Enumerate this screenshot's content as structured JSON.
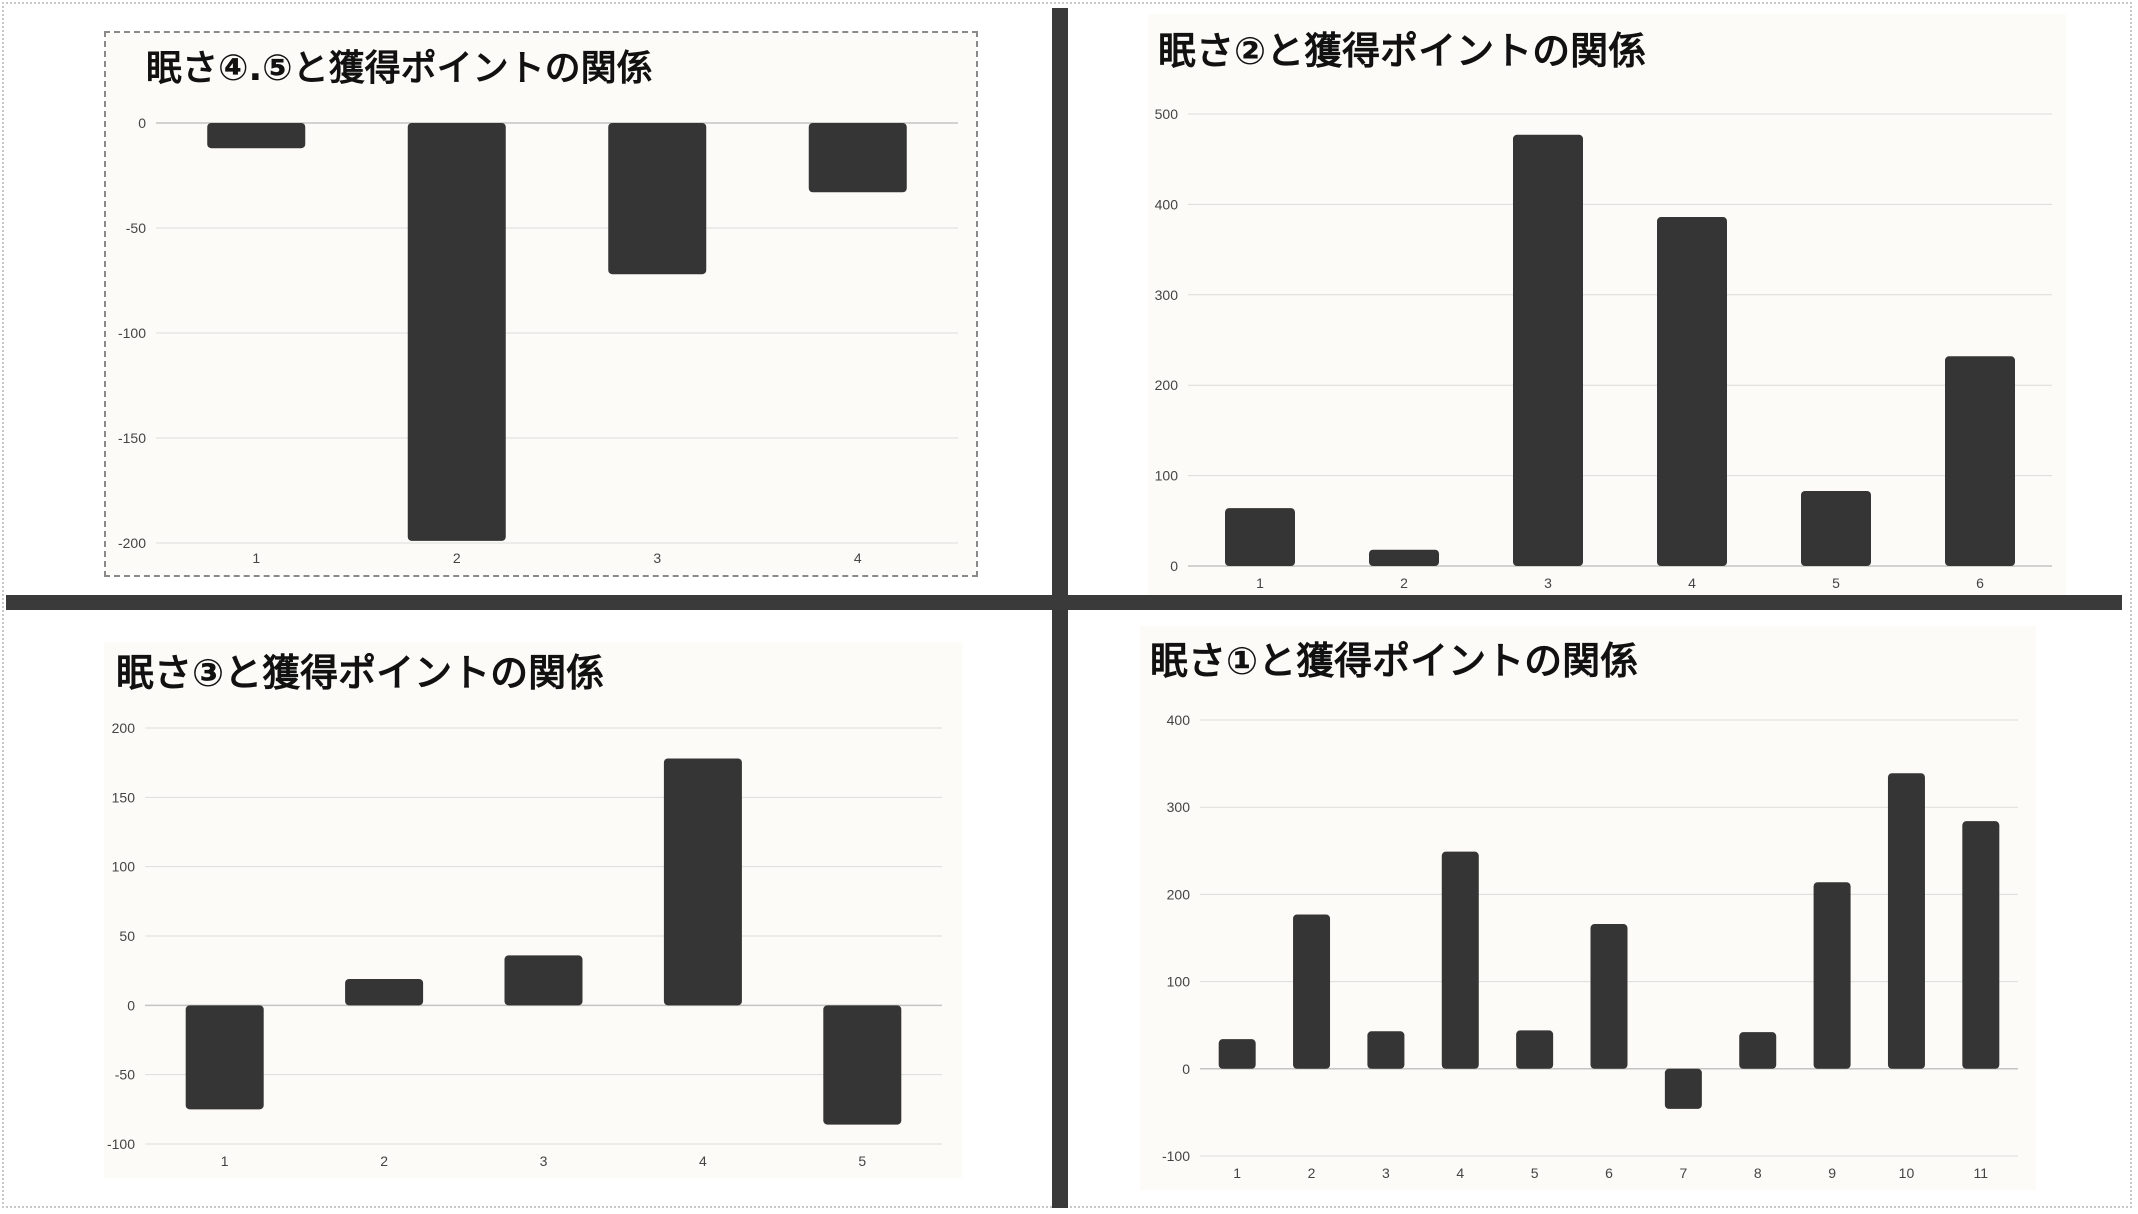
{
  "colors": {
    "bar": "#353535",
    "panel_background": "#fdfbf7",
    "gridline": "#dcdcdc",
    "baseline": "#c4c4c4",
    "divider": "#3a3a3a"
  },
  "chart_data": [
    {
      "type": "bar",
      "title": "眠さ④.⑤と獲得ポイントの関係",
      "categories": [
        "1",
        "2",
        "3",
        "4"
      ],
      "values": [
        -12,
        -199,
        -72,
        -33
      ],
      "yticks": [
        "0",
        "-50",
        "-100",
        "-150",
        "-200"
      ],
      "ylim": [
        -200,
        0
      ],
      "grid": true,
      "selected": true
    },
    {
      "type": "bar",
      "title": "眠さ②と獲得ポイントの関係",
      "categories": [
        "1",
        "2",
        "3",
        "4",
        "5",
        "6"
      ],
      "values": [
        64,
        18,
        477,
        386,
        83,
        232
      ],
      "yticks": [
        "0",
        "100",
        "200",
        "300",
        "400",
        "500"
      ],
      "ylim": [
        0,
        500
      ],
      "grid": true
    },
    {
      "type": "bar",
      "title": "眠さ③と獲得ポイントの関係",
      "categories": [
        "1",
        "2",
        "3",
        "4",
        "5"
      ],
      "values": [
        -75,
        19,
        36,
        178,
        -86
      ],
      "yticks": [
        "200",
        "150",
        "100",
        "50",
        "0",
        "-50",
        "-100"
      ],
      "ylim": [
        -100,
        200
      ],
      "grid": true
    },
    {
      "type": "bar",
      "title": "眠さ①と獲得ポイントの関係",
      "categories": [
        "1",
        "2",
        "3",
        "4",
        "5",
        "6",
        "7",
        "8",
        "9",
        "10",
        "11"
      ],
      "values": [
        34,
        177,
        43,
        249,
        44,
        166,
        -46,
        42,
        214,
        339,
        284
      ],
      "yticks": [
        "400",
        "300",
        "200",
        "100",
        "0",
        "-100"
      ],
      "ylim": [
        -100,
        400
      ],
      "grid": true
    }
  ]
}
